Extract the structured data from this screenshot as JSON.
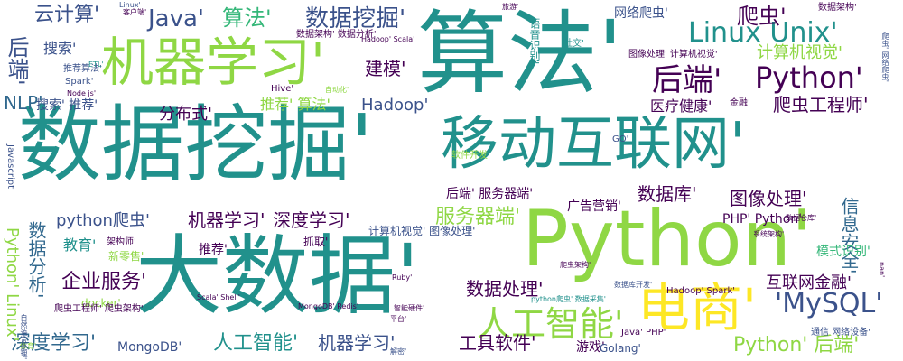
{
  "palette": {
    "dark_purple": "#440154",
    "indigo": "#3b528b",
    "blue": "#31688e",
    "teal": "#21918c",
    "green": "#35b779",
    "lime": "#8fd744",
    "yellow": "#fde725"
  },
  "words": [
    {
      "text": "数据挖掘'",
      "color": "teal"
    },
    {
      "text": "大数据'",
      "color": "teal"
    },
    {
      "text": "Python'",
      "color": "lime"
    },
    {
      "text": "算法'",
      "color": "teal"
    },
    {
      "text": "移动互联网'",
      "color": "teal"
    },
    {
      "text": "机器学习'",
      "color": "lime"
    },
    {
      "text": "电商'",
      "color": "yellow"
    },
    {
      "text": "Linux Unix'",
      "color": "teal"
    },
    {
      "text": "Python'",
      "color": "dark_purple"
    },
    {
      "text": "人工智能'",
      "color": "lime"
    },
    {
      "text": "'MySQL'",
      "color": "indigo"
    },
    {
      "text": "后端'",
      "color": "dark_purple"
    },
    {
      "text": "Java'",
      "color": "indigo"
    },
    {
      "text": "数据挖掘'",
      "color": "indigo"
    },
    {
      "text": "算法'",
      "color": "green"
    },
    {
      "text": "云计算'",
      "color": "indigo"
    },
    {
      "text": "爬虫'",
      "color": "dark_purple"
    },
    {
      "text": "计算机视觉'",
      "color": "lime"
    },
    {
      "text": "建模'",
      "color": "dark_purple"
    },
    {
      "text": "NLP'",
      "color": "blue"
    },
    {
      "text": "后端'",
      "color": "indigo"
    },
    {
      "text": "爬虫工程师'",
      "color": "dark_purple"
    },
    {
      "text": "深度学习'",
      "color": "blue"
    },
    {
      "text": "机器学习'",
      "color": "dark_purple"
    },
    {
      "text": "深度学习'",
      "color": "dark_purple"
    },
    {
      "text": "人工智能'",
      "color": "teal"
    },
    {
      "text": "机器学习'",
      "color": "indigo"
    },
    {
      "text": "工具软件'",
      "color": "dark_purple"
    },
    {
      "text": "Python' 后端'",
      "color": "lime"
    },
    {
      "text": "服务器端'",
      "color": "lime"
    },
    {
      "text": "数据库'",
      "color": "dark_purple"
    },
    {
      "text": "图像处理'",
      "color": "dark_purple"
    },
    {
      "text": "企业服务'",
      "color": "dark_purple"
    },
    {
      "text": "数据分析'",
      "color": "blue"
    },
    {
      "text": "python爬虫'",
      "color": "indigo"
    },
    {
      "text": "数据处理'",
      "color": "dark_purple"
    },
    {
      "text": "互联网金融'",
      "color": "dark_purple"
    },
    {
      "text": "信息安全'",
      "color": "blue"
    },
    {
      "text": "Python' Linux'",
      "color": "lime"
    },
    {
      "text": "分布式'",
      "color": "dark_purple"
    },
    {
      "text": "Hadoop'",
      "color": "indigo"
    },
    {
      "text": "推荐' 算法'",
      "color": "lime"
    },
    {
      "text": "医疗健康'",
      "color": "dark_purple"
    },
    {
      "text": "搜索'",
      "color": "indigo"
    },
    {
      "text": "搜索' 推荐'",
      "color": "indigo"
    },
    {
      "text": "后端' 服务器端'",
      "color": "dark_purple"
    },
    {
      "text": "PHP' Python'",
      "color": "dark_purple"
    },
    {
      "text": "MongoDB'",
      "color": "indigo"
    },
    {
      "text": "教育'",
      "color": "teal"
    },
    {
      "text": "推荐'",
      "color": "dark_purple"
    },
    {
      "text": "广告营销'",
      "color": "dark_purple"
    },
    {
      "text": "游戏'",
      "color": "dark_purple"
    },
    {
      "text": "网络爬虫'",
      "color": "indigo"
    },
    {
      "text": "数据架构'",
      "color": "dark_purple"
    },
    {
      "text": "计算机视觉' 图像处理'",
      "color": "indigo"
    },
    {
      "text": "模式识别'",
      "color": "green"
    },
    {
      "text": "docker'",
      "color": "lime"
    },
    {
      "text": "Golang'",
      "color": "indigo"
    },
    {
      "text": "新零售'",
      "color": "lime"
    },
    {
      "text": "推荐算法'",
      "color": "indigo"
    },
    {
      "text": "Spark'",
      "color": "indigo"
    },
    {
      "text": "Hadoop' Spark'",
      "color": "dark_purple"
    },
    {
      "text": "数据架构' 数据分析'",
      "color": "dark_purple"
    },
    {
      "text": "图像处理' 计算机视觉'",
      "color": "dark_purple"
    },
    {
      "text": "软件开发'",
      "color": "lime"
    },
    {
      "text": "Hive'",
      "color": "dark_purple"
    },
    {
      "text": "金融'",
      "color": "dark_purple"
    },
    {
      "text": "社交'",
      "color": "teal"
    },
    {
      "text": "Java' PHP'",
      "color": "dark_purple"
    },
    {
      "text": "通信 网络设备'",
      "color": "indigo"
    },
    {
      "text": "抓取'",
      "color": "dark_purple"
    },
    {
      "text": "架构师'",
      "color": "dark_purple"
    },
    {
      "text": "爬虫工程师' 爬虫架构'",
      "color": "dark_purple"
    },
    {
      "text": "MongoDB' Redis'",
      "color": "dark_purple"
    },
    {
      "text": "数据库开发'",
      "color": "indigo"
    },
    {
      "text": "Javascript'",
      "color": "indigo"
    },
    {
      "text": "语音识别'",
      "color": "teal"
    },
    {
      "text": "数据仓库'",
      "color": "dark_purple"
    },
    {
      "text": "Node js'",
      "color": "dark_purple"
    },
    {
      "text": "Linux'",
      "color": "indigo"
    },
    {
      "text": "旅游'",
      "color": "dark_purple"
    },
    {
      "text": "平台'",
      "color": "dark_purple"
    },
    {
      "text": "智能硬件'",
      "color": "dark_purple"
    },
    {
      "text": "Ruby'",
      "color": "dark_purple"
    },
    {
      "text": "爬虫架构'",
      "color": "dark_purple"
    },
    {
      "text": "体育'",
      "color": "lime"
    },
    {
      "text": "自然语言处理'",
      "color": "indigo"
    },
    {
      "text": "Scala' Shell'",
      "color": "dark_purple"
    },
    {
      "text": "Hadoop' Scala'",
      "color": "dark_purple"
    },
    {
      "text": "客户端'",
      "color": "dark_purple"
    },
    {
      "text": "自动化'",
      "color": "lime"
    },
    {
      "text": "GO'",
      "color": "indigo"
    },
    {
      "text": "ETL'",
      "color": "teal"
    },
    {
      "text": "解密'",
      "color": "indigo"
    },
    {
      "text": "python爬虫' 数据采集'",
      "color": "teal"
    },
    {
      "text": "爬虫' 网络爬虫'",
      "color": "indigo"
    },
    {
      "text": "系统架构'",
      "color": "dark_purple"
    },
    {
      "text": "nan'",
      "color": "dark_purple"
    }
  ]
}
